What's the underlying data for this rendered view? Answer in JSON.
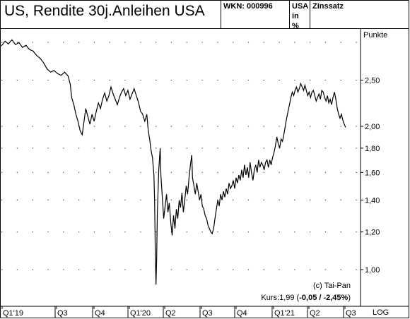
{
  "header": {
    "title": "US, Rendite 30j.Anleihen USA",
    "wkn": "WKN: 000996",
    "country": "USA",
    "unit": "in %",
    "category": "Zinssatz"
  },
  "chart_data": {
    "type": "line",
    "scale": "log",
    "y_unit_label": "Punkte",
    "y_ticks": [
      1.0,
      1.2,
      1.4,
      1.6,
      1.8,
      2.0,
      2.5
    ],
    "y_tick_labels": [
      "1,00",
      "1,20",
      "1,40",
      "1,60",
      "1,80",
      "2,00",
      "2,50"
    ],
    "x_tick_labels": [
      "Q1'19",
      "Q3",
      "Q4",
      "Q1'20",
      "Q2",
      "Q3",
      "Q4",
      "Q1'21",
      "Q2",
      "Q3"
    ],
    "x_axis_mode": "LOG",
    "grid": "dotted",
    "copyright": "(c) Tai-Pan",
    "kurs_label": "Kurs:1,99 (",
    "kurs_change": "-0,05 / -2,45%",
    "kurs_suffix": ")",
    "series": [
      {
        "color": "#000000",
        "points": [
          [
            0,
            2.95
          ],
          [
            5,
            3.02
          ],
          [
            10,
            2.98
          ],
          [
            15,
            3.04
          ],
          [
            20,
            2.97
          ],
          [
            25,
            3.0
          ],
          [
            30,
            2.93
          ],
          [
            35,
            2.96
          ],
          [
            40,
            2.9
          ],
          [
            45,
            2.88
          ],
          [
            50,
            2.82
          ],
          [
            55,
            2.78
          ],
          [
            60,
            2.72
          ],
          [
            65,
            2.64
          ],
          [
            70,
            2.6
          ],
          [
            75,
            2.62
          ],
          [
            80,
            2.58
          ],
          [
            85,
            2.56
          ],
          [
            90,
            2.6
          ],
          [
            95,
            2.55
          ],
          [
            98,
            2.45
          ],
          [
            100,
            2.3
          ],
          [
            103,
            2.22
          ],
          [
            106,
            2.12
          ],
          [
            109,
            2.05
          ],
          [
            112,
            1.96
          ],
          [
            115,
            1.92
          ],
          [
            117,
            2.02
          ],
          [
            120,
            2.18
          ],
          [
            123,
            2.1
          ],
          [
            126,
            2.02
          ],
          [
            129,
            2.12
          ],
          [
            132,
            2.05
          ],
          [
            135,
            2.15
          ],
          [
            138,
            2.24
          ],
          [
            141,
            2.18
          ],
          [
            144,
            2.28
          ],
          [
            147,
            2.35
          ],
          [
            150,
            2.26
          ],
          [
            153,
            2.32
          ],
          [
            156,
            2.42
          ],
          [
            159,
            2.34
          ],
          [
            162,
            2.28
          ],
          [
            165,
            2.22
          ],
          [
            168,
            2.3
          ],
          [
            171,
            2.36
          ],
          [
            174,
            2.4
          ],
          [
            177,
            2.32
          ],
          [
            180,
            2.38
          ],
          [
            183,
            2.28
          ],
          [
            186,
            2.34
          ],
          [
            189,
            2.4
          ],
          [
            192,
            2.32
          ],
          [
            195,
            2.25
          ],
          [
            198,
            2.15
          ],
          [
            201,
            2.12
          ],
          [
            204,
            2.05
          ],
          [
            207,
            2.12
          ],
          [
            209,
            1.96
          ],
          [
            211,
            1.88
          ],
          [
            213,
            1.78
          ],
          [
            215,
            1.72
          ],
          [
            217,
            1.58
          ],
          [
            218,
            1.4
          ],
          [
            219,
            1.08
          ],
          [
            220,
            0.93
          ],
          [
            221,
            1.05
          ],
          [
            222,
            1.32
          ],
          [
            224,
            1.62
          ],
          [
            226,
            1.8
          ],
          [
            227,
            1.58
          ],
          [
            229,
            1.42
          ],
          [
            231,
            1.28
          ],
          [
            233,
            1.36
          ],
          [
            235,
            1.44
          ],
          [
            237,
            1.32
          ],
          [
            239,
            1.38
          ],
          [
            241,
            1.26
          ],
          [
            243,
            1.18
          ],
          [
            245,
            1.3
          ],
          [
            247,
            1.22
          ],
          [
            249,
            1.34
          ],
          [
            251,
            1.28
          ],
          [
            253,
            1.4
          ],
          [
            255,
            1.35
          ],
          [
            257,
            1.45
          ],
          [
            259,
            1.32
          ],
          [
            261,
            1.4
          ],
          [
            263,
            1.5
          ],
          [
            265,
            1.44
          ],
          [
            267,
            1.56
          ],
          [
            269,
            1.66
          ],
          [
            271,
            1.74
          ],
          [
            272,
            1.56
          ],
          [
            274,
            1.5
          ],
          [
            276,
            1.44
          ],
          [
            278,
            1.52
          ],
          [
            280,
            1.46
          ],
          [
            282,
            1.4
          ],
          [
            284,
            1.44
          ],
          [
            286,
            1.36
          ],
          [
            288,
            1.34
          ],
          [
            290,
            1.3
          ],
          [
            292,
            1.28
          ],
          [
            294,
            1.24
          ],
          [
            296,
            1.22
          ],
          [
            298,
            1.2
          ],
          [
            300,
            1.19
          ],
          [
            302,
            1.22
          ],
          [
            304,
            1.28
          ],
          [
            306,
            1.34
          ],
          [
            308,
            1.4
          ],
          [
            310,
            1.36
          ],
          [
            312,
            1.44
          ],
          [
            314,
            1.4
          ],
          [
            316,
            1.46
          ],
          [
            318,
            1.42
          ],
          [
            320,
            1.48
          ],
          [
            322,
            1.44
          ],
          [
            324,
            1.52
          ],
          [
            326,
            1.48
          ],
          [
            328,
            1.5
          ],
          [
            330,
            1.54
          ],
          [
            332,
            1.48
          ],
          [
            334,
            1.56
          ],
          [
            336,
            1.52
          ],
          [
            338,
            1.58
          ],
          [
            340,
            1.54
          ],
          [
            342,
            1.62
          ],
          [
            344,
            1.56
          ],
          [
            346,
            1.66
          ],
          [
            348,
            1.58
          ],
          [
            350,
            1.64
          ],
          [
            352,
            1.56
          ],
          [
            354,
            1.68
          ],
          [
            356,
            1.6
          ],
          [
            358,
            1.54
          ],
          [
            360,
            1.62
          ],
          [
            362,
            1.66
          ],
          [
            364,
            1.6
          ],
          [
            366,
            1.7
          ],
          [
            368,
            1.64
          ],
          [
            370,
            1.68
          ],
          [
            372,
            1.66
          ],
          [
            374,
            1.62
          ],
          [
            376,
            1.68
          ],
          [
            378,
            1.7
          ],
          [
            380,
            1.64
          ],
          [
            382,
            1.7
          ],
          [
            384,
            1.66
          ],
          [
            386,
            1.72
          ],
          [
            388,
            1.76
          ],
          [
            390,
            1.82
          ],
          [
            392,
            1.9
          ],
          [
            394,
            1.84
          ],
          [
            396,
            1.8
          ],
          [
            398,
            1.88
          ],
          [
            400,
            1.86
          ],
          [
            402,
            1.92
          ],
          [
            404,
            2.0
          ],
          [
            406,
            2.08
          ],
          [
            408,
            2.15
          ],
          [
            410,
            2.22
          ],
          [
            412,
            2.3
          ],
          [
            414,
            2.36
          ],
          [
            416,
            2.32
          ],
          [
            418,
            2.38
          ],
          [
            420,
            2.42
          ],
          [
            422,
            2.36
          ],
          [
            424,
            2.4
          ],
          [
            426,
            2.46
          ],
          [
            428,
            2.42
          ],
          [
            430,
            2.38
          ],
          [
            432,
            2.44
          ],
          [
            434,
            2.38
          ],
          [
            436,
            2.32
          ],
          [
            438,
            2.36
          ],
          [
            440,
            2.3
          ],
          [
            442,
            2.36
          ],
          [
            444,
            2.38
          ],
          [
            446,
            2.32
          ],
          [
            448,
            2.26
          ],
          [
            450,
            2.3
          ],
          [
            452,
            2.34
          ],
          [
            454,
            2.28
          ],
          [
            456,
            2.38
          ],
          [
            458,
            2.36
          ],
          [
            460,
            2.3
          ],
          [
            462,
            2.26
          ],
          [
            464,
            2.32
          ],
          [
            466,
            2.24
          ],
          [
            468,
            2.28
          ],
          [
            470,
            2.22
          ],
          [
            472,
            2.3
          ],
          [
            474,
            2.36
          ],
          [
            476,
            2.28
          ],
          [
            478,
            2.18
          ],
          [
            480,
            2.12
          ],
          [
            482,
            2.08
          ],
          [
            484,
            2.12
          ],
          [
            486,
            2.06
          ],
          [
            488,
            2.02
          ],
          [
            490,
            1.99
          ]
        ]
      }
    ]
  }
}
